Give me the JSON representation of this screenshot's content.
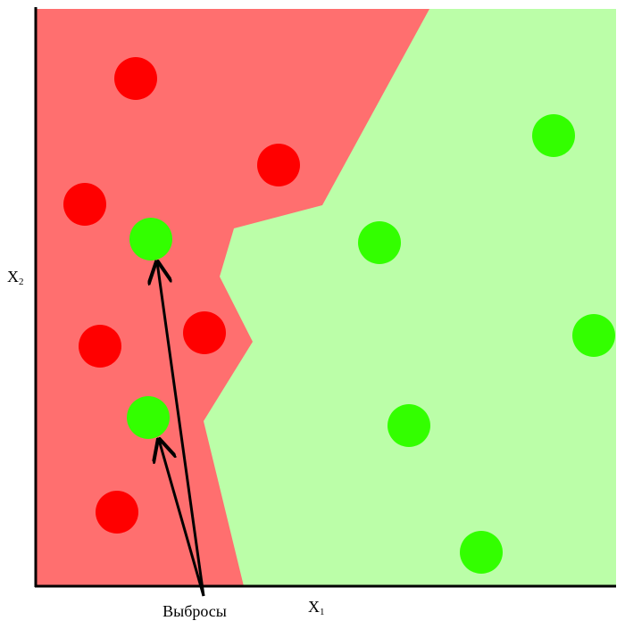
{
  "x_axis": {
    "letter": "X",
    "index": "1"
  },
  "y_axis": {
    "letter": "X",
    "index": "2"
  },
  "annotation": "Выбросы"
}
